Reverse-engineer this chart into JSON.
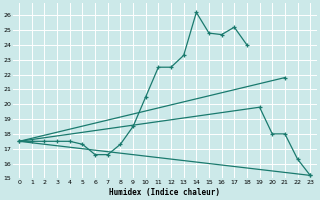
{
  "xlabel": "Humidex (Indice chaleur)",
  "xlim": [
    -0.5,
    23.5
  ],
  "ylim": [
    15,
    26.8
  ],
  "yticks": [
    15,
    16,
    17,
    18,
    19,
    20,
    21,
    22,
    23,
    24,
    25,
    26
  ],
  "xticks": [
    0,
    1,
    2,
    3,
    4,
    5,
    6,
    7,
    8,
    9,
    10,
    11,
    12,
    13,
    14,
    15,
    16,
    17,
    18,
    19,
    20,
    21,
    22,
    23
  ],
  "bg_color": "#cce9e9",
  "grid_color": "#ffffff",
  "line_color": "#1a7a6e",
  "zigzag_x": [
    0,
    1,
    2,
    3,
    4,
    5,
    6,
    7,
    8,
    9,
    10,
    11,
    12,
    13,
    14,
    15,
    16,
    17,
    18
  ],
  "zigzag_y": [
    17.5,
    17.5,
    17.5,
    17.5,
    17.5,
    17.3,
    16.6,
    16.6,
    17.3,
    18.5,
    20.5,
    22.5,
    22.5,
    23.3,
    26.2,
    24.8,
    24.7,
    25.2,
    24.0
  ],
  "line1_x": [
    0,
    21
  ],
  "line1_y": [
    17.5,
    21.8
  ],
  "line2_x": [
    0,
    19,
    20,
    21,
    22,
    23
  ],
  "line2_y": [
    17.5,
    19.8,
    18.0,
    18.0,
    16.3,
    15.2
  ],
  "line3_x": [
    0,
    23
  ],
  "line3_y": [
    17.5,
    15.2
  ]
}
